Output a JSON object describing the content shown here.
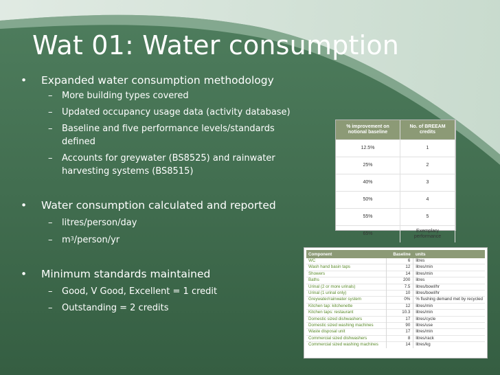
{
  "slide": {
    "title": "Wat 01: Water consumption",
    "bullets": [
      {
        "text": "Expanded water consumption methodology",
        "sub": [
          "More building types covered",
          "Updated occupancy usage data (activity database)",
          "Baseline and five performance levels/standards",
          "defined",
          "Accounts for greywater (BS8525) and rainwater",
          "harvesting systems (BS8515)"
        ]
      },
      {
        "text": "Water consumption calculated and reported",
        "sub": [
          "litres/person/day",
          "m",
          "3",
          "/person/yr"
        ]
      },
      {
        "text": "Minimum standards maintained",
        "sub": [
          "Good, V Good, Excellent = 1 credit",
          "Outstanding = 2 credits"
        ]
      }
    ],
    "bullet_glyph": "•",
    "dash_glyph": "–"
  },
  "credits_table": {
    "headers": [
      "% improvement on",
      "notional baseline",
      "No. of BREEAM",
      "credits"
    ],
    "rows": [
      [
        "12.5%",
        "1"
      ],
      [
        "25%",
        "2"
      ],
      [
        "40%",
        "3"
      ],
      [
        "50%",
        "4"
      ],
      [
        "55%",
        "5"
      ],
      [
        "65%",
        "Exemplary",
        "performance"
      ]
    ]
  },
  "component_table": {
    "headers": [
      "Component",
      "Baseline",
      "units"
    ],
    "rows": [
      [
        "WC",
        "6",
        "litres"
      ],
      [
        "Wash hand basin taps",
        "12",
        "litres/min"
      ],
      [
        "Showers",
        "14",
        "litres/min"
      ],
      [
        "Baths",
        "200",
        "litres"
      ],
      [
        "Urinal (2 or more urinals)",
        "7.5",
        "litres/bowl/hr"
      ],
      [
        "Urinal (1 urinal only)",
        "10",
        "litres/bowl/hr"
      ],
      [
        "Greywater/rainwater system",
        "0%",
        "% flushing demand met by recycled"
      ],
      [
        "Kitchen tap: kitchenette",
        "12",
        "litres/min"
      ],
      [
        "Kitchen taps: restaurant",
        "10.3",
        "litres/min"
      ],
      [
        "Domestic sized dishwashers",
        "17",
        "litres/cycle"
      ],
      [
        "Domestic sized washing machines",
        "90",
        "litres/use"
      ],
      [
        "Waste disposal unit",
        "17",
        "litres/min"
      ],
      [
        "Commercial sized dishwashers",
        "8",
        "litres/rack"
      ],
      [
        "Commercial sized washing machines",
        "14",
        "litres/kg"
      ]
    ]
  },
  "colors": {
    "background": "#3f6e4f",
    "swoosh": "#d7e6dc",
    "table_header": "#8c9a76",
    "component_text": "#5a8a2a"
  }
}
